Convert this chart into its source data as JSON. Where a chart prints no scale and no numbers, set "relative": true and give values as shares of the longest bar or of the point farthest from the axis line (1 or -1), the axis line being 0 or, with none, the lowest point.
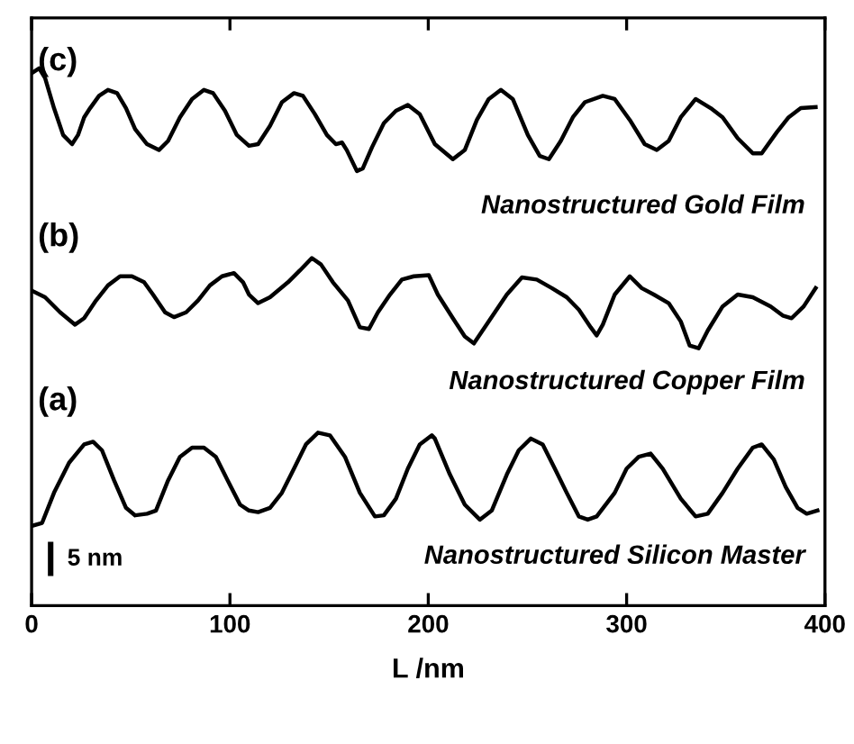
{
  "chart_data": {
    "type": "line",
    "relative": true,
    "xlabel": "L /nm",
    "xlim": [
      0,
      400
    ],
    "xticks": [
      0,
      100,
      200,
      300,
      400
    ],
    "grid": false,
    "legend": false,
    "marker": "none",
    "line_style": "solid",
    "annotations": [
      "(c)",
      "Nanostructured Gold Film",
      "(b)",
      "Nanostructured Copper Film",
      "(a)",
      "Nanostructured Silicon Master",
      "5 nm"
    ],
    "series": [
      {
        "color": "#000000",
        "x": [
          0.8,
          5.3,
          11.3,
          18.9,
          26.5,
          31.0,
          35.5,
          41.6,
          47.6,
          52.2,
          58.2,
          62.7,
          68.8,
          74.8,
          80.9,
          86.9,
          92.9,
          100.5,
          105.1,
          109.6,
          114.2,
          120.2,
          126.2,
          132.3,
          138.3,
          144.4,
          150.4,
          158.0,
          165.5,
          173.1,
          177.6,
          183.7,
          189.7,
          195.7,
          201.8,
          203.3,
          210.9,
          218.4,
          226.0,
          232.0,
          239.6,
          245.6,
          251.7,
          257.7,
          263.8,
          269.8,
          275.9,
          280.4,
          284.9,
          294.0,
          300.0,
          306.1,
          312.1,
          318.2,
          327.3,
          334.8,
          340.9,
          348.4,
          356.0,
          363.6,
          368.1,
          374.2,
          380.2,
          386.2,
          390.8,
          396.2
        ],
        "values": [
          0.149,
          0.154,
          0.21,
          0.266,
          0.3,
          0.305,
          0.289,
          0.233,
          0.182,
          0.168,
          0.171,
          0.177,
          0.233,
          0.277,
          0.294,
          0.294,
          0.277,
          0.221,
          0.188,
          0.177,
          0.174,
          0.182,
          0.21,
          0.255,
          0.3,
          0.322,
          0.317,
          0.277,
          0.21,
          0.166,
          0.168,
          0.199,
          0.255,
          0.3,
          0.317,
          0.311,
          0.244,
          0.188,
          0.16,
          0.177,
          0.244,
          0.289,
          0.311,
          0.3,
          0.255,
          0.21,
          0.166,
          0.16,
          0.166,
          0.21,
          0.255,
          0.277,
          0.283,
          0.255,
          0.199,
          0.166,
          0.171,
          0.21,
          0.255,
          0.294,
          0.3,
          0.272,
          0.221,
          0.182,
          0.171,
          0.177
        ]
      },
      {
        "color": "#000000",
        "x": [
          0.8,
          6.8,
          14.4,
          21.9,
          26.5,
          32.5,
          38.5,
          44.6,
          50.6,
          56.7,
          61.2,
          67.3,
          71.8,
          77.9,
          83.9,
          89.9,
          96.0,
          102.0,
          106.6,
          109.6,
          114.2,
          120.2,
          129.3,
          135.3,
          141.3,
          145.9,
          151.9,
          159.5,
          165.5,
          170.1,
          174.6,
          180.7,
          186.7,
          192.7,
          200.3,
          204.8,
          212.4,
          218.4,
          223.0,
          230.5,
          239.6,
          247.2,
          254.7,
          262.3,
          269.8,
          275.9,
          281.9,
          284.9,
          288.0,
          294.0,
          301.6,
          307.6,
          313.7,
          321.2,
          327.3,
          331.8,
          336.3,
          340.9,
          348.4,
          356.0,
          363.6,
          372.6,
          378.7,
          383.2,
          389.3,
          395.3
        ],
        "values": [
          0.585,
          0.574,
          0.546,
          0.523,
          0.535,
          0.568,
          0.596,
          0.613,
          0.613,
          0.602,
          0.579,
          0.546,
          0.537,
          0.546,
          0.568,
          0.596,
          0.613,
          0.619,
          0.602,
          0.579,
          0.563,
          0.574,
          0.602,
          0.624,
          0.647,
          0.635,
          0.602,
          0.568,
          0.518,
          0.515,
          0.546,
          0.579,
          0.607,
          0.613,
          0.615,
          0.579,
          0.535,
          0.501,
          0.488,
          0.529,
          0.579,
          0.611,
          0.607,
          0.591,
          0.574,
          0.551,
          0.518,
          0.503,
          0.523,
          0.579,
          0.613,
          0.591,
          0.579,
          0.563,
          0.529,
          0.484,
          0.479,
          0.512,
          0.557,
          0.579,
          0.574,
          0.557,
          0.54,
          0.535,
          0.557,
          0.591
        ]
      },
      {
        "color": "#000000",
        "x": [
          0.8,
          3.8,
          6.8,
          11.3,
          15.9,
          20.4,
          23.4,
          26.5,
          29.5,
          34.0,
          38.5,
          43.1,
          47.6,
          52.2,
          58.2,
          64.2,
          68.8,
          74.8,
          80.9,
          86.9,
          91.5,
          97.5,
          103.5,
          109.6,
          114.2,
          120.2,
          126.2,
          132.3,
          136.8,
          142.8,
          148.9,
          153.4,
          156.5,
          158.9,
          164.0,
          167.0,
          171.6,
          177.6,
          183.7,
          189.7,
          195.7,
          203.3,
          212.4,
          218.4,
          224.5,
          230.5,
          236.6,
          242.6,
          250.2,
          256.2,
          260.8,
          266.8,
          272.9,
          278.9,
          288.0,
          294.0,
          301.6,
          309.1,
          315.2,
          321.2,
          327.3,
          334.8,
          342.4,
          348.4,
          356.0,
          363.6,
          368.1,
          375.7,
          381.7,
          387.8,
          395.3
        ],
        "values": [
          0.993,
          1.0,
          0.982,
          0.926,
          0.876,
          0.859,
          0.876,
          0.909,
          0.926,
          0.949,
          0.96,
          0.954,
          0.926,
          0.887,
          0.859,
          0.848,
          0.865,
          0.909,
          0.943,
          0.96,
          0.954,
          0.921,
          0.876,
          0.856,
          0.859,
          0.893,
          0.937,
          0.954,
          0.949,
          0.915,
          0.876,
          0.859,
          0.862,
          0.848,
          0.809,
          0.814,
          0.853,
          0.898,
          0.921,
          0.932,
          0.915,
          0.859,
          0.831,
          0.848,
          0.904,
          0.943,
          0.96,
          0.943,
          0.876,
          0.837,
          0.831,
          0.865,
          0.909,
          0.937,
          0.949,
          0.943,
          0.904,
          0.859,
          0.848,
          0.865,
          0.909,
          0.943,
          0.926,
          0.909,
          0.87,
          0.842,
          0.842,
          0.881,
          0.909,
          0.926,
          0.928
        ]
      }
    ]
  }
}
